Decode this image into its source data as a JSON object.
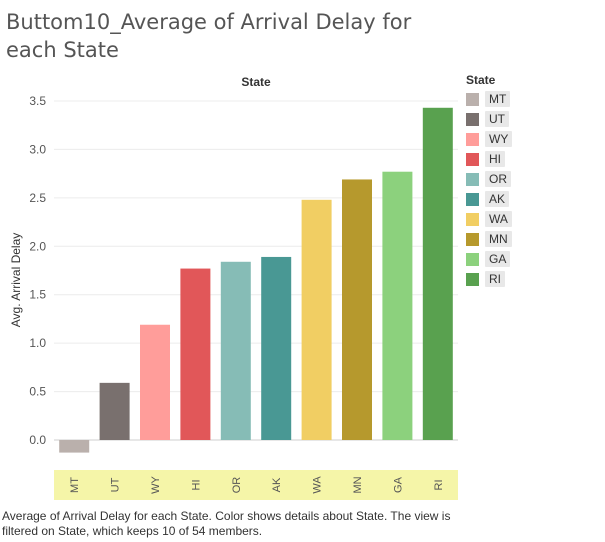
{
  "title": "Buttom10_Average of Arrival Delay for each State",
  "chart_data": {
    "type": "bar",
    "column_header": "State",
    "ylabel": "Avg. Arrival Delay",
    "ylim": [
      -0.3,
      3.6
    ],
    "yticks": [
      "3.5",
      "3.0",
      "2.5",
      "2.0",
      "1.5",
      "1.0",
      "0.5",
      "0.0"
    ],
    "ytick_values": [
      3.5,
      3.0,
      2.5,
      2.0,
      1.5,
      1.0,
      0.5,
      0.0
    ],
    "categories": [
      "MT",
      "UT",
      "WY",
      "HI",
      "OR",
      "AK",
      "WA",
      "MN",
      "GA",
      "RI"
    ],
    "values": [
      -0.13,
      0.59,
      1.19,
      1.77,
      1.84,
      1.89,
      2.48,
      2.69,
      2.77,
      3.43
    ],
    "colors": [
      "#bab0ac",
      "#79706e",
      "#ff9d9a",
      "#e15759",
      "#86bcb6",
      "#499894",
      "#f1ce63",
      "#b6992d",
      "#8cd17d",
      "#59a14f"
    ],
    "highlight_color": "#f5f5a8",
    "grid": "horizontal",
    "legend_position": "right"
  },
  "legend": {
    "title": "State",
    "items": [
      {
        "label": "MT",
        "color": "#bab0ac"
      },
      {
        "label": "UT",
        "color": "#79706e"
      },
      {
        "label": "WY",
        "color": "#ff9d9a"
      },
      {
        "label": "HI",
        "color": "#e15759"
      },
      {
        "label": "OR",
        "color": "#86bcb6"
      },
      {
        "label": "AK",
        "color": "#499894"
      },
      {
        "label": "WA",
        "color": "#f1ce63"
      },
      {
        "label": "MN",
        "color": "#b6992d"
      },
      {
        "label": "GA",
        "color": "#8cd17d"
      },
      {
        "label": "RI",
        "color": "#59a14f"
      }
    ]
  },
  "caption": "Average of Arrival Delay for each State.  Color shows details about State. The view is filtered on State, which keeps 10 of 54 members."
}
